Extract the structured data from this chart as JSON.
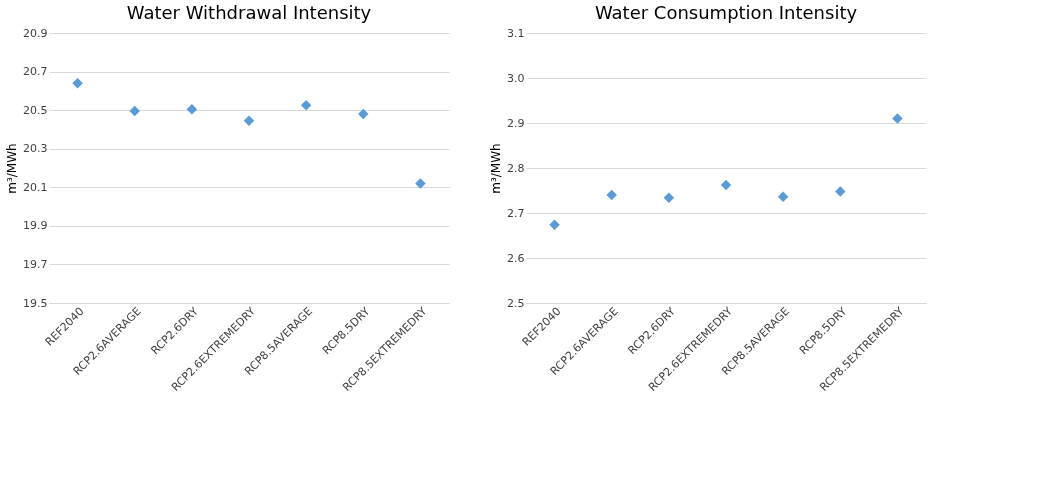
{
  "chart_data": [
    {
      "type": "scatter",
      "title": "Water Withdrawal Intensity",
      "ylabel": "m³/MWh",
      "categories": [
        "REF2040",
        "RCP2.6AVERAGE",
        "RCP2.6DRY",
        "RCP2.6EXTREMEDRY",
        "RCP8.5AVERAGE",
        "RCP8.5DRY",
        "RCP8.5EXTREMEDRY"
      ],
      "series": [
        {
          "color": "#5b9bd5",
          "values": [
            20.64,
            20.495,
            20.505,
            20.445,
            20.525,
            20.48,
            20.12
          ]
        }
      ],
      "ylim": [
        19.5,
        20.9
      ],
      "yticks": [
        19.5,
        19.7,
        19.9,
        20.1,
        20.3,
        20.5,
        20.7,
        20.9
      ],
      "grid": "y",
      "marker": "diamond"
    },
    {
      "type": "scatter",
      "title": "Water Consumption Intensity",
      "ylabel": "m³/MWh",
      "categories": [
        "REF2040",
        "RCP2.6AVERAGE",
        "RCP2.6DRY",
        "RCP2.6EXTREMEDRY",
        "RCP8.5AVERAGE",
        "RCP8.5DRY",
        "RCP8.5EXTREMEDRY"
      ],
      "series": [
        {
          "color": "#5b9bd5",
          "values": [
            2.674,
            2.74,
            2.734,
            2.762,
            2.736,
            2.748,
            2.91
          ]
        }
      ],
      "ylim": [
        2.5,
        3.1
      ],
      "yticks": [
        2.5,
        2.6,
        2.7,
        2.8,
        2.9,
        {
          "value": 3.0,
          "label": "3.0"
        },
        3.1
      ],
      "grid": "y",
      "marker": "diamond"
    }
  ]
}
